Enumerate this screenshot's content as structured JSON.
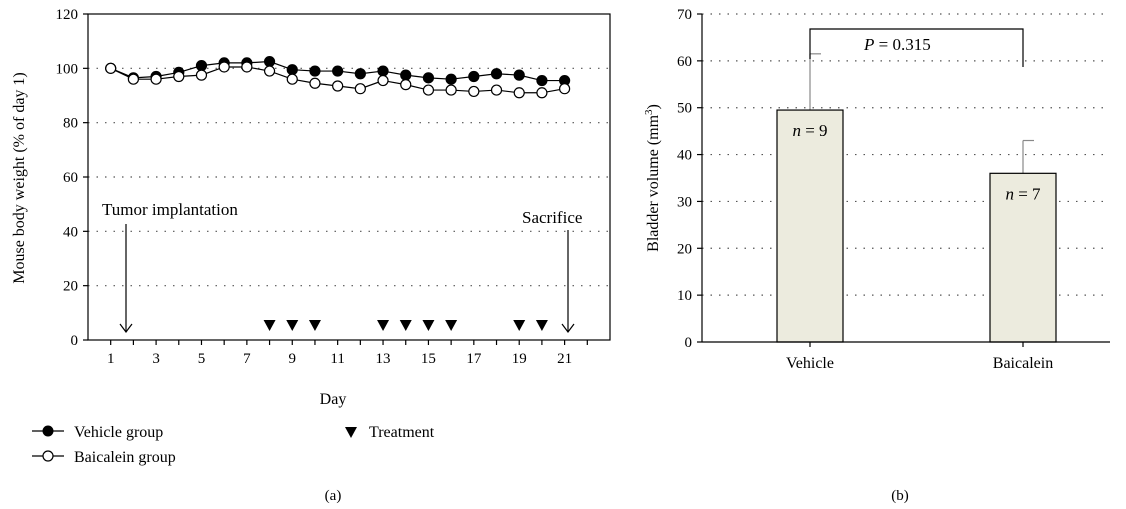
{
  "panel_a": {
    "label": "(a)",
    "xlabel": "Day",
    "ylabel": "Mouse body weight (% of day 1)",
    "annotations": {
      "tumor": "Tumor implantation",
      "sacrifice": "Sacrifice"
    },
    "legend": {
      "vehicle": "Vehicle group",
      "baicalein": "Baicalein group",
      "treatment": "Treatment"
    }
  },
  "panel_b": {
    "label": "(b)",
    "ylabel_main": "Bladder volume (mm",
    "ylabel_sup": "3",
    "ylabel_close": ")",
    "pvalue_p": "P",
    "pvalue_rest": " = 0.315",
    "n_letter": "n",
    "n_vehicle": " = 9",
    "n_baicalein": " = 7"
  },
  "colors": {
    "bar_fill": "#ecebde",
    "marker_filled": "#000000",
    "marker_open": "#ffffff"
  },
  "chart_data": [
    {
      "type": "line",
      "xlabel": "Day",
      "ylabel": "Mouse body weight (% of day 1)",
      "xlim": [
        0,
        23
      ],
      "ylim": [
        0,
        120
      ],
      "xticks": [
        1,
        3,
        5,
        7,
        9,
        11,
        13,
        15,
        17,
        19,
        21
      ],
      "yticks": [
        0,
        20,
        40,
        60,
        80,
        100,
        120
      ],
      "grid": "horizontal dotted",
      "legend_position": "bottom",
      "x": [
        1,
        2,
        3,
        4,
        5,
        6,
        7,
        8,
        9,
        10,
        11,
        12,
        13,
        14,
        15,
        16,
        17,
        18,
        19,
        20,
        21
      ],
      "series": [
        {
          "name": "Vehicle group",
          "marker": "filled-circle",
          "values": [
            100,
            96.5,
            97,
            98.5,
            101,
            102,
            102,
            102.5,
            99.5,
            99,
            99,
            98,
            99,
            97.5,
            96.5,
            96,
            97,
            98,
            97.5,
            95.5,
            95.5
          ]
        },
        {
          "name": "Baicalein group",
          "marker": "open-circle",
          "values": [
            100,
            96,
            96,
            97,
            97.5,
            100.5,
            100.5,
            99,
            96,
            94.5,
            93.5,
            92.5,
            95.5,
            94,
            92,
            92,
            91.5,
            92,
            91,
            91,
            92.5
          ]
        }
      ],
      "treatment_days": [
        8,
        9,
        10,
        13,
        14,
        15,
        16,
        19,
        20
      ],
      "treatment_label": "Treatment",
      "annotations": [
        {
          "text": "Tumor implantation",
          "day": 1
        },
        {
          "text": "Sacrifice",
          "day": 21
        }
      ]
    },
    {
      "type": "bar",
      "categories": [
        "Vehicle",
        "Baicalein"
      ],
      "values": [
        49.5,
        36
      ],
      "error_upper": [
        61.5,
        43
      ],
      "n": [
        9,
        7
      ],
      "ylabel": "Bladder volume (mm3)",
      "ylim": [
        0,
        70
      ],
      "yticks": [
        0,
        10,
        20,
        30,
        40,
        50,
        60,
        70
      ],
      "grid": "horizontal dotted",
      "comparison": "P = 0.315"
    }
  ]
}
